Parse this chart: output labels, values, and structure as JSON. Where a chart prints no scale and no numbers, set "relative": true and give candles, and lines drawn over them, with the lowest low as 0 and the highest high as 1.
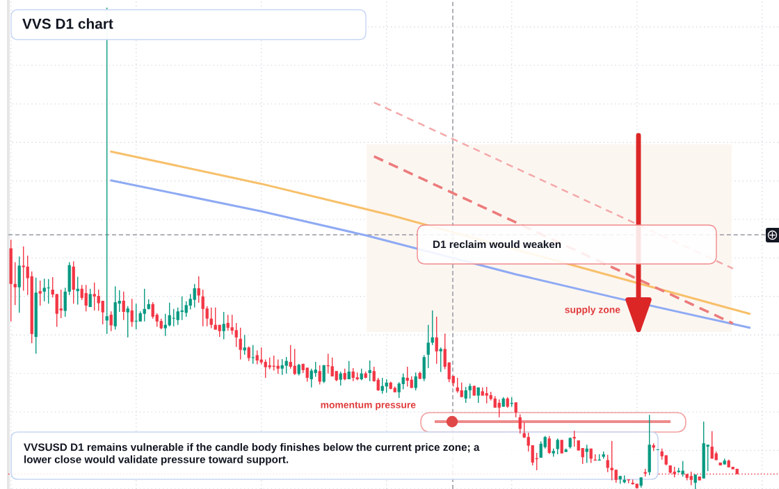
{
  "chart_data": {
    "type": "candlestick",
    "title": "VVS D1 chart",
    "relative": true,
    "grid": true,
    "tick_labels": false,
    "categories": [
      null,
      null,
      null,
      null,
      null,
      null,
      null,
      null,
      null,
      null,
      null,
      null,
      null,
      null,
      null,
      null,
      null,
      null,
      null,
      null,
      null,
      null,
      null,
      null,
      null,
      null,
      null,
      null,
      null,
      null,
      null,
      null,
      null,
      null,
      null,
      null,
      null,
      null,
      null,
      null,
      null,
      null,
      null,
      null,
      null,
      null,
      null,
      null,
      null,
      null,
      null,
      null,
      null,
      null,
      null,
      null,
      null,
      null,
      null,
      null,
      null,
      null,
      null,
      null,
      null,
      null,
      null,
      null,
      null,
      null,
      null,
      null,
      null,
      null,
      null,
      null,
      null,
      null,
      null,
      null,
      null,
      null,
      null,
      null,
      null,
      null,
      null,
      null,
      null,
      null,
      null,
      null,
      null,
      null,
      null,
      null,
      null,
      null,
      null,
      null,
      null,
      null,
      null,
      null,
      null,
      null,
      null,
      null,
      null,
      null,
      null,
      null,
      null,
      null,
      null,
      null,
      null,
      null,
      null,
      null,
      null,
      null,
      null,
      null,
      null,
      null,
      null,
      null,
      null,
      null,
      null,
      null,
      null,
      null,
      null,
      null,
      null,
      null,
      null,
      null,
      null,
      null,
      null,
      null,
      null,
      null,
      null,
      null,
      null,
      null,
      null,
      null,
      null,
      null,
      null,
      null,
      null,
      null,
      null,
      null,
      null,
      null,
      null,
      null,
      null,
      null,
      null,
      null,
      null,
      null,
      null,
      null,
      null,
      null,
      null,
      null,
      null,
      null,
      null,
      null,
      null,
      null,
      null,
      null,
      null
    ],
    "ohlc": [
      [
        0.5,
        0.518,
        0.348,
        0.426
      ],
      [
        0.426,
        0.471,
        0.382,
        0.419
      ],
      [
        0.419,
        0.483,
        0.366,
        0.464
      ],
      [
        0.464,
        0.504,
        0.412,
        0.461
      ],
      [
        0.462,
        0.485,
        0.403,
        0.438
      ],
      [
        0.442,
        0.452,
        0.303,
        0.322
      ],
      [
        0.316,
        0.439,
        0.281,
        0.408
      ],
      [
        0.411,
        0.433,
        0.381,
        0.406
      ],
      [
        0.41,
        0.437,
        0.39,
        0.418
      ],
      [
        0.417,
        0.436,
        0.385,
        0.418
      ],
      [
        0.414,
        0.44,
        0.398,
        0.404
      ],
      [
        0.405,
        0.405,
        0.337,
        0.364
      ],
      [
        0.375,
        0.414,
        0.355,
        0.371
      ],
      [
        0.37,
        0.418,
        0.358,
        0.41
      ],
      [
        0.41,
        0.471,
        0.403,
        0.465
      ],
      [
        0.462,
        0.473,
        0.385,
        0.414
      ],
      [
        0.411,
        0.441,
        0.383,
        0.416
      ],
      [
        0.416,
        0.424,
        0.393,
        0.397
      ],
      [
        0.407,
        0.424,
        0.369,
        0.381
      ],
      [
        0.378,
        0.416,
        0.378,
        0.405
      ],
      [
        0.405,
        0.429,
        0.371,
        0.4
      ],
      [
        0.401,
        0.414,
        0.37,
        0.386
      ],
      [
        0.391,
        0.391,
        0.342,
        0.367
      ],
      [
        0.35,
        1.0,
        0.322,
        0.359
      ],
      [
        0.362,
        0.369,
        0.328,
        0.34
      ],
      [
        0.338,
        0.421,
        0.331,
        0.388
      ],
      [
        0.385,
        0.413,
        0.368,
        0.391
      ],
      [
        0.391,
        0.41,
        0.351,
        0.368
      ],
      [
        0.367,
        0.38,
        0.315,
        0.375
      ],
      [
        0.371,
        0.395,
        0.337,
        0.347
      ],
      [
        0.348,
        0.385,
        0.332,
        0.349
      ],
      [
        0.348,
        0.369,
        0.348,
        0.365
      ],
      [
        0.364,
        0.416,
        0.348,
        0.374
      ],
      [
        0.374,
        0.394,
        0.373,
        0.384
      ],
      [
        0.384,
        0.388,
        0.354,
        0.358
      ],
      [
        0.362,
        0.365,
        0.337,
        0.348
      ],
      [
        0.349,
        0.354,
        0.332,
        0.334
      ],
      [
        0.334,
        0.364,
        0.318,
        0.341
      ],
      [
        0.34,
        0.387,
        0.338,
        0.361
      ],
      [
        0.354,
        0.374,
        0.338,
        0.355
      ],
      [
        0.351,
        0.377,
        0.341,
        0.369
      ],
      [
        0.368,
        0.4,
        0.351,
        0.371
      ],
      [
        0.366,
        0.39,
        0.358,
        0.382
      ],
      [
        0.381,
        0.405,
        0.373,
        0.395
      ],
      [
        0.393,
        0.426,
        0.377,
        0.417
      ],
      [
        0.417,
        0.442,
        0.387,
        0.402
      ],
      [
        0.4,
        0.414,
        0.338,
        0.374
      ],
      [
        0.375,
        0.38,
        0.338,
        0.354
      ],
      [
        0.354,
        0.377,
        0.334,
        0.341
      ],
      [
        0.341,
        0.377,
        0.331,
        0.331
      ],
      [
        0.341,
        0.341,
        0.316,
        0.328
      ],
      [
        0.328,
        0.368,
        0.311,
        0.343
      ],
      [
        0.345,
        0.362,
        0.329,
        0.335
      ],
      [
        0.336,
        0.362,
        0.321,
        0.329
      ],
      [
        0.33,
        0.345,
        0.295,
        0.315
      ],
      [
        0.312,
        0.335,
        0.269,
        0.289
      ],
      [
        0.288,
        0.32,
        0.279,
        0.294
      ],
      [
        0.294,
        0.296,
        0.266,
        0.272
      ],
      [
        0.272,
        0.299,
        0.26,
        0.273
      ],
      [
        0.278,
        0.288,
        0.259,
        0.267
      ],
      [
        0.269,
        0.294,
        0.259,
        0.263
      ],
      [
        0.264,
        0.269,
        0.231,
        0.253
      ],
      [
        0.257,
        0.273,
        0.249,
        0.253
      ],
      [
        0.256,
        0.277,
        0.246,
        0.254
      ],
      [
        0.256,
        0.269,
        0.239,
        0.25
      ],
      [
        0.25,
        0.27,
        0.237,
        0.257
      ],
      [
        0.256,
        0.274,
        0.24,
        0.266
      ],
      [
        0.264,
        0.299,
        0.25,
        0.254
      ],
      [
        0.256,
        0.291,
        0.237,
        0.239
      ],
      [
        0.239,
        0.26,
        0.236,
        0.258
      ],
      [
        0.26,
        0.26,
        0.241,
        0.247
      ],
      [
        0.252,
        0.252,
        0.223,
        0.231
      ],
      [
        0.228,
        0.25,
        0.211,
        0.246
      ],
      [
        0.241,
        0.264,
        0.233,
        0.248
      ],
      [
        0.245,
        0.257,
        0.217,
        0.223
      ],
      [
        0.223,
        0.258,
        0.22,
        0.257
      ],
      [
        0.257,
        0.281,
        0.24,
        0.255
      ],
      [
        0.255,
        0.273,
        0.234,
        0.234
      ],
      [
        0.245,
        0.245,
        0.224,
        0.226
      ],
      [
        0.227,
        0.244,
        0.215,
        0.24
      ],
      [
        0.241,
        0.25,
        0.226,
        0.228
      ],
      [
        0.228,
        0.266,
        0.228,
        0.244
      ],
      [
        0.244,
        0.251,
        0.224,
        0.231
      ],
      [
        0.232,
        0.242,
        0.226,
        0.228
      ],
      [
        0.228,
        0.25,
        0.226,
        0.24
      ],
      [
        0.24,
        0.244,
        0.23,
        0.231
      ],
      [
        0.241,
        0.267,
        0.224,
        0.247
      ],
      [
        0.245,
        0.254,
        0.223,
        0.224
      ],
      [
        0.227,
        0.231,
        0.204,
        0.205
      ],
      [
        0.204,
        0.231,
        0.198,
        0.214
      ],
      [
        0.213,
        0.228,
        0.2,
        0.221
      ],
      [
        0.221,
        0.223,
        0.207,
        0.208
      ],
      [
        0.21,
        0.213,
        0.201,
        0.201
      ],
      [
        0.201,
        0.222,
        0.189,
        0.219
      ],
      [
        0.218,
        0.24,
        0.207,
        0.232
      ],
      [
        0.231,
        0.254,
        0.213,
        0.225
      ],
      [
        0.227,
        0.234,
        0.21,
        0.21
      ],
      [
        0.21,
        0.242,
        0.205,
        0.234
      ],
      [
        0.241,
        0.244,
        0.228,
        0.229
      ],
      [
        0.229,
        0.278,
        0.224,
        0.274
      ],
      [
        0.279,
        0.341,
        0.251,
        0.304
      ],
      [
        0.304,
        0.371,
        0.299,
        0.315
      ],
      [
        0.315,
        0.358,
        0.26,
        0.286
      ],
      [
        0.286,
        0.294,
        0.243,
        0.291
      ],
      [
        0.291,
        0.323,
        0.249,
        0.254
      ],
      [
        0.263,
        0.263,
        0.222,
        0.228
      ],
      [
        0.235,
        0.235,
        0.213,
        0.22
      ],
      [
        0.211,
        0.231,
        0.2,
        0.203
      ],
      [
        0.205,
        0.221,
        0.191,
        0.191
      ],
      [
        0.188,
        0.212,
        0.179,
        0.205
      ],
      [
        0.205,
        0.219,
        0.188,
        0.214
      ],
      [
        0.214,
        0.215,
        0.194,
        0.194
      ],
      [
        0.194,
        0.211,
        0.179,
        0.211
      ],
      [
        0.203,
        0.211,
        0.194,
        0.194
      ],
      [
        0.199,
        0.212,
        0.178,
        0.194
      ],
      [
        0.195,
        0.202,
        0.184,
        0.187
      ],
      [
        0.188,
        0.193,
        0.169,
        0.169
      ],
      [
        0.179,
        0.186,
        0.149,
        0.169
      ],
      [
        0.171,
        0.191,
        0.171,
        0.188
      ],
      [
        0.188,
        0.191,
        0.169,
        0.171
      ],
      [
        0.177,
        0.191,
        0.171,
        0.179
      ],
      [
        0.18,
        0.18,
        0.149,
        0.159
      ],
      [
        0.149,
        0.155,
        0.115,
        0.125
      ],
      [
        0.116,
        0.138,
        0.106,
        0.107
      ],
      [
        0.108,
        0.117,
        0.078,
        0.09
      ],
      [
        0.091,
        0.091,
        0.049,
        0.055
      ],
      [
        0.064,
        0.075,
        0.039,
        0.062
      ],
      [
        0.065,
        0.099,
        0.065,
        0.094
      ],
      [
        0.087,
        0.11,
        0.084,
        0.108
      ],
      [
        0.105,
        0.11,
        0.073,
        0.075
      ],
      [
        0.074,
        0.084,
        0.067,
        0.079
      ],
      [
        0.083,
        0.105,
        0.072,
        0.102
      ],
      [
        0.102,
        0.102,
        0.074,
        0.074
      ],
      [
        0.077,
        0.084,
        0.077,
        0.082
      ],
      [
        0.087,
        0.107,
        0.084,
        0.106
      ],
      [
        0.108,
        0.121,
        0.088,
        0.105
      ],
      [
        0.101,
        0.101,
        0.08,
        0.08
      ],
      [
        0.085,
        0.085,
        0.052,
        0.066
      ],
      [
        0.077,
        0.092,
        0.054,
        0.084
      ],
      [
        0.084,
        0.084,
        0.054,
        0.063
      ],
      [
        0.061,
        0.072,
        0.059,
        0.059
      ],
      [
        0.059,
        0.072,
        0.059,
        0.061
      ],
      [
        0.067,
        0.078,
        0.063,
        0.072
      ],
      [
        0.06,
        0.071,
        0.035,
        0.044
      ],
      [
        0.044,
        0.1,
        0.018,
        0.039
      ],
      [
        0.04,
        0.04,
        0.013,
        0.019
      ],
      [
        0.02,
        0.027,
        0.011,
        0.027
      ],
      [
        0.014,
        0.028,
        0.012,
        0.019
      ],
      [
        0.02,
        0.02,
        0.012,
        0.018
      ],
      [
        0.013,
        0.02,
        0.009,
        0.01
      ],
      [
        0.011,
        0.011,
        0.001,
        0.002
      ],
      [
        0.007,
        0.024,
        0.003,
        0.024
      ],
      [
        0.035,
        0.042,
        0.026,
        0.032
      ],
      [
        0.035,
        0.154,
        0.029,
        0.092
      ],
      [
        0.091,
        0.095,
        0.079,
        0.086
      ],
      [
        0.081,
        0.082,
        0.081,
        0.082
      ],
      [
        0.078,
        0.084,
        0.061,
        0.068
      ],
      [
        0.07,
        0.07,
        0.049,
        0.051
      ],
      [
        0.049,
        0.049,
        0.032,
        0.034
      ],
      [
        0.036,
        0.046,
        0.024,
        0.031
      ],
      [
        0.035,
        0.044,
        0.034,
        0.038
      ],
      [
        0.031,
        0.058,
        0.026,
        0.038
      ],
      [
        0.031,
        0.031,
        0.018,
        0.023
      ],
      [
        0.027,
        0.036,
        0.008,
        0.019
      ],
      [
        0.013,
        0.03,
        0.0,
        0.03
      ],
      [
        0.026,
        0.026,
        0.018,
        0.018
      ],
      [
        0.022,
        0.14,
        0.022,
        0.095
      ],
      [
        0.088,
        0.092,
        0.037,
        0.092
      ],
      [
        0.088,
        0.12,
        0.063,
        0.063
      ],
      [
        0.074,
        0.078,
        0.06,
        0.06
      ],
      [
        0.055,
        0.055,
        0.049,
        0.049
      ],
      [
        0.051,
        0.063,
        0.051,
        0.059
      ],
      [
        0.059,
        0.061,
        0.045,
        0.045
      ],
      [
        0.046,
        0.046,
        0.041,
        0.041
      ],
      [
        0.042,
        0.042,
        0.031,
        0.031
      ],
      null,
      null,
      null,
      null,
      null,
      null,
      null,
      null,
      null,
      null
    ],
    "colors": [
      "#f23645",
      "#f23645",
      "#089981",
      "#f23645",
      "#f23645",
      "#f23645",
      "#089981",
      "#f23645",
      "#089981",
      "#089981",
      "#f23645",
      "#f23645",
      "#f23645",
      "#089981",
      "#089981",
      "#f23645",
      "#089981",
      "#f23645",
      "#f23645",
      "#089981",
      "#f23645",
      "#f23645",
      "#f23645",
      "#089981",
      "#f23645",
      "#089981",
      "#089981",
      "#f23645",
      "#089981",
      "#f23645",
      "#089981",
      "#089981",
      "#089981",
      "#089981",
      "#f23645",
      "#f23645",
      "#f23645",
      "#089981",
      "#089981",
      "#089981",
      "#089981",
      "#089981",
      "#089981",
      "#089981",
      "#089981",
      "#f23645",
      "#f23645",
      "#f23645",
      "#f23645",
      "#f23645",
      "#f23645",
      "#089981",
      "#f23645",
      "#f23645",
      "#f23645",
      "#f23645",
      "#089981",
      "#f23645",
      "#089981",
      "#f23645",
      "#f23645",
      "#f23645",
      "#f23645",
      "#f23645",
      "#f23645",
      "#089981",
      "#089981",
      "#f23645",
      "#f23645",
      "#089981",
      "#f23645",
      "#f23645",
      "#089981",
      "#089981",
      "#f23645",
      "#089981",
      "#f23645",
      "#f23645",
      "#f23645",
      "#089981",
      "#f23645",
      "#089981",
      "#f23645",
      "#f23645",
      "#089981",
      "#f23645",
      "#089981",
      "#f23645",
      "#f23645",
      "#089981",
      "#089981",
      "#f23645",
      "#f23645",
      "#089981",
      "#089981",
      "#f23645",
      "#f23645",
      "#089981",
      "#f23645",
      "#089981",
      "#089981",
      "#089981",
      "#f23645",
      "#089981",
      "#f23645",
      "#f23645",
      "#f23645",
      "#f23645",
      "#f23645",
      "#089981",
      "#089981",
      "#f23645",
      "#089981",
      "#f23645",
      "#f23645",
      "#f23645",
      "#f23645",
      "#f23645",
      "#089981",
      "#f23645",
      "#089981",
      "#f23645",
      "#f23645",
      "#f23645",
      "#f23645",
      "#f23645",
      "#f23645",
      "#089981",
      "#089981",
      "#f23645",
      "#089981",
      "#089981",
      "#f23645",
      "#089981",
      "#089981",
      "#f23645",
      "#f23645",
      "#f23645",
      "#089981",
      "#f23645",
      "#f23645",
      "#089981",
      "#089981",
      "#f23645",
      "#f23645",
      "#f23645",
      "#089981",
      "#089981",
      "#f23645",
      "#f23645",
      "#f23645",
      "#089981",
      "#f23645",
      "#089981",
      "#f23645",
      "#089981",
      "#f23645",
      "#f23645",
      "#f23645",
      "#f23645",
      "#089981",
      "#089981",
      "#f23645",
      "#f23645",
      "#089981",
      "#f23645",
      "#089981",
      "#089981",
      "#f23645",
      "#f23645",
      "#f23645",
      "#089981",
      "#f23645",
      "#f23645",
      "#f23645",
      null,
      null,
      null,
      null,
      null,
      null,
      null,
      null,
      null,
      null
    ],
    "series": [
      {
        "type": "line",
        "color": "#f7c06a",
        "line_style": "solid",
        "values": [
          null,
          null,
          null,
          null,
          null,
          null,
          null,
          null,
          null,
          null,
          null,
          null,
          null,
          null,
          null,
          null,
          null,
          null,
          null,
          null,
          null,
          null,
          null,
          null,
          0.701,
          null,
          null,
          null,
          null,
          null,
          null,
          null,
          null,
          null,
          null,
          null,
          null,
          null,
          null,
          null,
          null,
          null,
          null,
          null,
          null,
          null,
          null,
          null,
          null,
          null,
          null,
          null,
          null,
          null,
          null,
          null,
          null,
          null,
          null,
          null,
          0.634,
          null,
          null,
          null,
          null,
          null,
          null,
          null,
          null,
          null,
          null,
          null,
          null,
          null,
          null,
          null,
          null,
          null,
          null,
          null,
          null,
          null,
          null,
          null,
          null,
          null,
          null,
          null,
          null,
          null,
          null,
          0.569,
          null,
          null,
          null,
          null,
          null,
          null,
          null,
          null,
          null,
          null,
          null,
          null,
          null,
          null,
          null,
          null,
          null,
          null,
          null,
          null,
          null,
          null,
          null,
          null,
          null,
          null,
          null,
          null,
          null,
          null,
          null,
          null,
          null,
          null,
          null,
          null,
          null,
          null,
          null,
          null,
          null,
          null,
          null,
          null,
          null,
          null,
          null,
          null,
          null,
          null,
          null,
          null,
          null,
          0.44,
          null,
          null,
          null,
          null,
          null,
          null,
          null,
          null,
          null,
          null,
          null,
          null,
          null,
          null,
          null,
          null,
          null,
          null,
          null,
          null,
          null,
          null,
          null,
          null,
          null,
          null,
          null,
          null,
          null,
          null,
          null,
          0.364,
          null,
          null,
          null,
          null,
          null,
          null,
          null
        ]
      },
      {
        "type": "line",
        "color": "#8eaaf3",
        "line_style": "solid",
        "values": [
          null,
          null,
          null,
          null,
          null,
          null,
          null,
          null,
          null,
          null,
          null,
          null,
          null,
          null,
          null,
          null,
          null,
          null,
          null,
          null,
          null,
          null,
          null,
          null,
          0.641,
          null,
          null,
          null,
          null,
          null,
          null,
          null,
          null,
          null,
          null,
          null,
          null,
          null,
          null,
          null,
          null,
          null,
          null,
          null,
          null,
          null,
          null,
          null,
          null,
          null,
          null,
          null,
          null,
          null,
          null,
          null,
          null,
          null,
          null,
          null,
          0.577,
          null,
          null,
          null,
          null,
          null,
          null,
          null,
          null,
          null,
          null,
          null,
          null,
          null,
          null,
          null,
          null,
          null,
          null,
          null,
          null,
          null,
          null,
          null,
          null,
          0.527,
          null,
          null,
          null,
          null,
          null,
          null,
          null,
          null,
          null,
          null,
          null,
          null,
          null,
          null,
          null,
          null,
          null,
          null,
          null,
          null,
          null,
          null,
          null,
          null,
          null,
          null,
          null,
          null,
          null,
          null,
          null,
          null,
          null,
          null,
          null,
          0.446,
          null,
          null,
          null,
          null,
          null,
          null,
          null,
          null,
          null,
          null,
          null,
          null,
          null,
          null,
          null,
          null,
          null,
          null,
          null,
          null,
          null,
          null,
          null,
          0.397,
          null,
          null,
          null,
          null,
          null,
          null,
          null,
          null,
          null,
          null,
          null,
          null,
          null,
          null,
          null,
          null,
          null,
          null,
          null,
          null,
          null,
          null,
          null,
          null,
          null,
          null,
          null,
          null,
          null,
          null,
          null,
          0.335,
          null,
          null,
          null,
          null,
          null,
          null,
          null
        ]
      },
      {
        "type": "line",
        "color": "#ec7b7b",
        "line_style": "dashed",
        "values": [
          null,
          null,
          null,
          null,
          null,
          null,
          null,
          null,
          null,
          null,
          null,
          null,
          null,
          null,
          null,
          null,
          null,
          null,
          null,
          null,
          null,
          null,
          null,
          null,
          null,
          null,
          null,
          null,
          null,
          null,
          null,
          null,
          null,
          null,
          null,
          null,
          null,
          null,
          null,
          null,
          null,
          null,
          null,
          null,
          null,
          null,
          null,
          null,
          null,
          null,
          null,
          null,
          null,
          null,
          null,
          null,
          null,
          null,
          null,
          null,
          null,
          null,
          null,
          null,
          null,
          null,
          null,
          null,
          null,
          null,
          null,
          null,
          null,
          null,
          null,
          null,
          null,
          null,
          null,
          null,
          null,
          null,
          null,
          null,
          null,
          null,
          null,
          0.691,
          null,
          null,
          null,
          null,
          null,
          null,
          null,
          null,
          null,
          null,
          null,
          null,
          null,
          null,
          null,
          null,
          null,
          null,
          null,
          null,
          null,
          null,
          null,
          null,
          null,
          null,
          null,
          null,
          null,
          null,
          null,
          null,
          null,
          null,
          null,
          null,
          null,
          null,
          null,
          null,
          null,
          null,
          null,
          null,
          null,
          null,
          null,
          null,
          null,
          null,
          null,
          null,
          null,
          null,
          null,
          null,
          null,
          null,
          null,
          null,
          null,
          null,
          null,
          null,
          null,
          null,
          null,
          null,
          null,
          null,
          null,
          null,
          null,
          null,
          null,
          null,
          null,
          null,
          null,
          null,
          null,
          null,
          null,
          null,
          null,
          0.344,
          null,
          null,
          null,
          null,
          null,
          null,
          null,
          null,
          null,
          null,
          null
        ]
      },
      {
        "type": "line",
        "color": "#f4a8a8",
        "line_style": "dashed",
        "values": [
          null,
          null,
          null,
          null,
          null,
          null,
          null,
          null,
          null,
          null,
          null,
          null,
          null,
          null,
          null,
          null,
          null,
          null,
          null,
          null,
          null,
          null,
          null,
          null,
          null,
          null,
          null,
          null,
          null,
          null,
          null,
          null,
          null,
          null,
          null,
          null,
          null,
          null,
          null,
          null,
          null,
          null,
          null,
          null,
          null,
          null,
          null,
          null,
          null,
          null,
          null,
          null,
          null,
          null,
          null,
          null,
          null,
          null,
          null,
          null,
          null,
          null,
          null,
          null,
          null,
          null,
          null,
          null,
          null,
          null,
          null,
          null,
          null,
          null,
          null,
          null,
          null,
          null,
          null,
          null,
          null,
          null,
          null,
          null,
          null,
          null,
          null,
          0.803,
          null,
          null,
          null,
          null,
          null,
          null,
          null,
          null,
          null,
          null,
          null,
          null,
          null,
          null,
          null,
          null,
          null,
          null,
          null,
          null,
          null,
          null,
          null,
          null,
          null,
          null,
          null,
          null,
          null,
          null,
          null,
          null,
          null,
          null,
          null,
          null,
          null,
          null,
          null,
          null,
          null,
          null,
          null,
          null,
          null,
          null,
          null,
          null,
          null,
          null,
          null,
          null,
          null,
          null,
          null,
          null,
          null,
          null,
          null,
          null,
          null,
          null,
          null,
          null,
          null,
          null,
          null,
          null,
          null,
          null,
          null,
          null,
          null,
          null,
          null,
          null,
          null,
          null,
          null,
          null,
          null,
          null,
          null,
          null,
          null,
          0.458,
          null,
          null,
          null,
          null,
          null,
          null,
          null,
          null,
          null,
          null,
          null
        ]
      }
    ],
    "ref_lines": [
      {
        "axis": "y",
        "value": 0.528,
        "color": "#9598a1",
        "line_style": "dashed"
      },
      {
        "axis": "y",
        "value": 0.031,
        "color": "#f23645",
        "line_style": "dotted"
      }
    ],
    "bands": [
      {
        "axis": "y",
        "from": 0.326,
        "to": 0.716,
        "label": "supply zone",
        "color": "#fcf6f1"
      }
    ],
    "annotations": [
      "D1 reclaim would weaken",
      "momentum pressure",
      "VVSUSD D1 remains vulnerable if the candle body finishes below the current price zone; a lower close would validate pressure toward support."
    ]
  }
}
